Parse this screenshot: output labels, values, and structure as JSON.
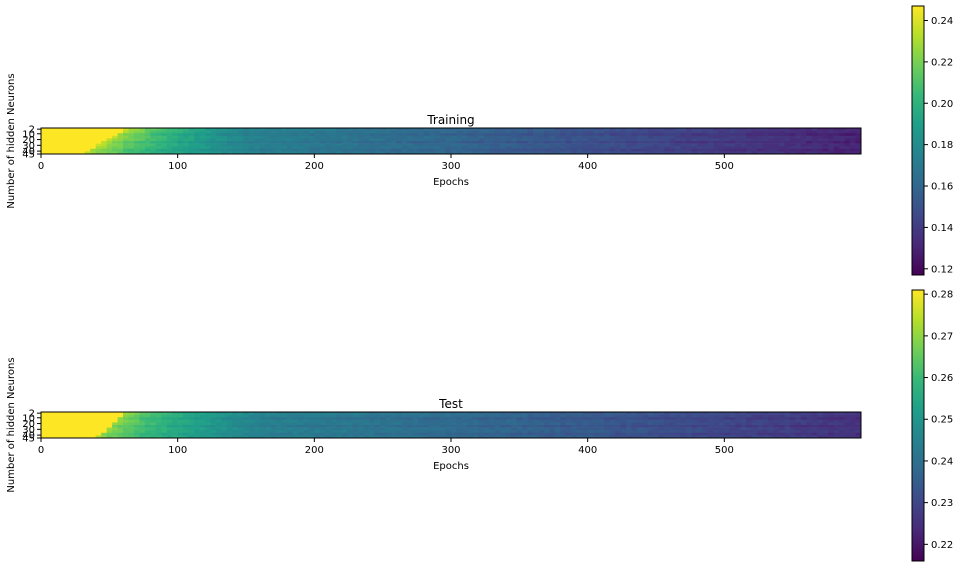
{
  "chart_data": [
    {
      "type": "heatmap",
      "title": "Training",
      "xlabel": "Epochs",
      "ylabel": "Number of hidden Neurons",
      "x_ticks": [
        "0",
        "100",
        "200",
        "300",
        "400",
        "500"
      ],
      "y_ticks": [
        "2",
        "10",
        "20",
        "30",
        "40",
        "45"
      ],
      "x_range": [
        0,
        600
      ],
      "n_rows": 10,
      "colorbar": {
        "colormap": "viridis",
        "range": [
          0.117,
          0.247
        ],
        "ticks": [
          "0.12",
          "0.14",
          "0.16",
          "0.18",
          "0.20",
          "0.22",
          "0.24"
        ]
      },
      "profile": {
        "plateau": 0.247,
        "plateau_epochs": [
          30,
          60
        ],
        "mid_level": 0.175,
        "end_level": 0.13,
        "decay_epoch": 150
      }
    },
    {
      "type": "heatmap",
      "title": "Test",
      "xlabel": "Epochs",
      "ylabel": "Number of hidden Neurons",
      "x_ticks": [
        "0",
        "100",
        "200",
        "300",
        "400",
        "500"
      ],
      "y_ticks": [
        "2",
        "10",
        "20",
        "30",
        "40",
        "45"
      ],
      "x_range": [
        0,
        600
      ],
      "n_rows": 10,
      "colorbar": {
        "colormap": "viridis",
        "range": [
          0.216,
          0.281
        ],
        "ticks": [
          "0.22",
          "0.23",
          "0.24",
          "0.25",
          "0.26",
          "0.27",
          "0.28"
        ]
      },
      "profile": {
        "plateau": 0.281,
        "plateau_epochs": [
          40,
          60
        ],
        "mid_level": 0.245,
        "end_level": 0.226,
        "decay_epoch": 160
      }
    }
  ]
}
